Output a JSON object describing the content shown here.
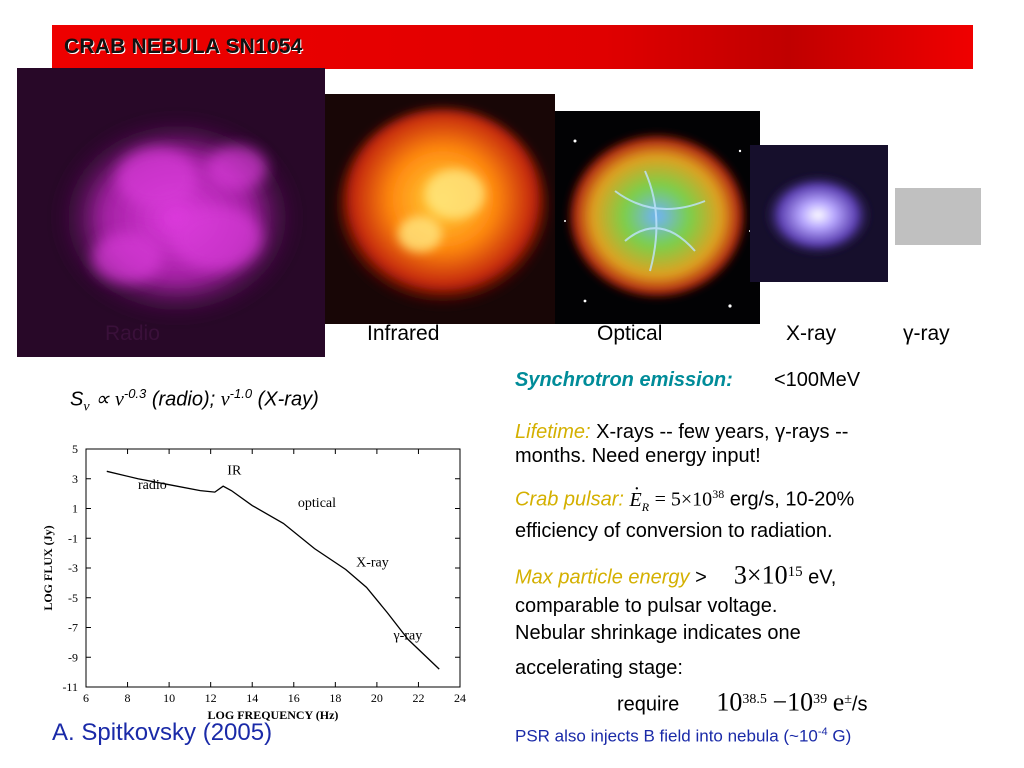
{
  "slide": {
    "title": "CRAB NEBULA SN1054",
    "band_labels": {
      "radio": "Radio",
      "infrared": "Infrared",
      "optical": "Optical",
      "xray": "X-ray",
      "gamma": "γ-ray"
    },
    "spectrum_formula": {
      "s_nu": "S",
      "nu_sub": "ν",
      "propto": "∝",
      "nu": "ν",
      "exp_radio": "-0.3",
      "radio_text": "(radio);",
      "nu2": "ν",
      "exp_xray": "-1.0",
      "xray_text": "(X-ray)"
    },
    "synchrotron": {
      "label": "Synchrotron emission:",
      "value": "<100MeV"
    },
    "lifetime": {
      "label": "Lifetime:",
      "line1": "X-rays -- few years, γ-rays --",
      "line2": "months. Need energy input!"
    },
    "crab_pulsar": {
      "label": "Crab pulsar:",
      "e_sym": "E",
      "e_sub": "R",
      "eq": "= 5×10",
      "exp": "38",
      "unit_text": "erg/s,  10-20%",
      "line2": "efficiency of conversion to radiation."
    },
    "max_energy": {
      "label": "Max particle energy",
      "gt": ">",
      "value_base": "3×10",
      "value_exp": "15",
      "unit": "eV,",
      "line2": "comparable to pulsar voltage."
    },
    "shrinkage": {
      "line1": "Nebular shrinkage indicates one",
      "line2": "accelerating stage:"
    },
    "require": {
      "label": "require",
      "base1": "10",
      "exp1": "38.5",
      "dash": "−10",
      "exp2": "39",
      "particle": "e",
      "particle_exp": "±",
      "unit": "/s"
    },
    "psr_note": {
      "text": "PSR also injects B field into nebula (~10",
      "exp": "-4",
      "tail": " G)"
    },
    "citation": "A. Spitkovsky (2005)"
  },
  "chart_data": {
    "type": "line",
    "title": "",
    "xlabel": "LOG FREQUENCY (Hz)",
    "ylabel": "LOG FLUX (Jy)",
    "xlim": [
      6,
      24
    ],
    "ylim": [
      -11,
      5
    ],
    "x_ticks": [
      6,
      8,
      10,
      12,
      14,
      16,
      18,
      20,
      22,
      24
    ],
    "y_ticks": [
      5,
      3,
      1,
      -1,
      -3,
      -5,
      -7,
      -9,
      -11
    ],
    "series": [
      {
        "x": [
          7.0,
          8.5,
          10.0,
          11.5,
          12.2,
          12.6,
          13.0,
          14.0,
          15.5,
          17.0,
          18.5,
          19.5,
          20.5,
          21.5,
          23.0
        ],
        "y": [
          3.5,
          3.0,
          2.6,
          2.2,
          2.1,
          2.5,
          2.2,
          1.2,
          0.0,
          -1.7,
          -3.1,
          -4.3,
          -6.0,
          -7.8,
          -9.8
        ]
      }
    ],
    "annotations": [
      {
        "text": "radio",
        "x": 8.5,
        "y": 2.3
      },
      {
        "text": "IR",
        "x": 12.8,
        "y": 3.3
      },
      {
        "text": "optical",
        "x": 16.2,
        "y": 1.1
      },
      {
        "text": "X-ray",
        "x": 19.0,
        "y": -2.9
      },
      {
        "text": "γ-ray",
        "x": 20.8,
        "y": -7.8
      }
    ]
  },
  "colors": {
    "title_bar": "#e00000",
    "teal": "#008c99",
    "gold": "#d4b000",
    "citation_blue": "#1a2aa8"
  }
}
